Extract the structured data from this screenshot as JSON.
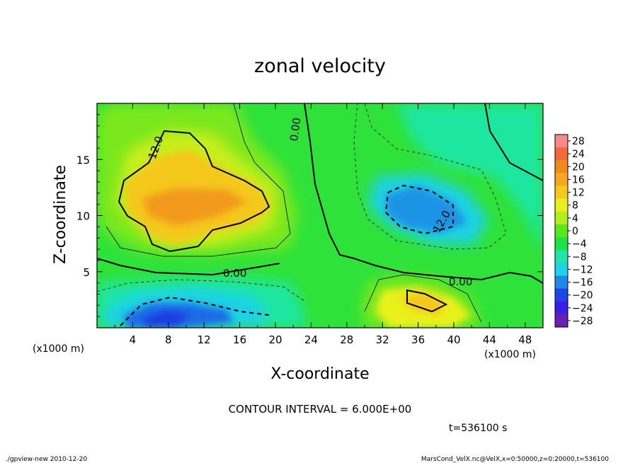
{
  "chart_data": {
    "type": "heatmap",
    "title": "zonal velocity",
    "xlabel": "X-coordinate",
    "ylabel": "Z-coordinate",
    "x_unit": "(x1000 m)",
    "y_unit": "(x1000 m)",
    "xlim": [
      0,
      50
    ],
    "ylim": [
      0,
      20
    ],
    "xticks": [
      4,
      8,
      12,
      16,
      20,
      24,
      28,
      32,
      36,
      40,
      44,
      48
    ],
    "yticks": [
      5,
      10,
      15
    ],
    "colorbar_levels": [
      28,
      24,
      20,
      16,
      12,
      8,
      4,
      0,
      -4,
      -8,
      -12,
      -16,
      -20,
      -24,
      -28
    ],
    "colorbar_colors": [
      "#f58a8a",
      "#f26a3a",
      "#f08a1e",
      "#f5a81e",
      "#f5c81e",
      "#eaf01e",
      "#b4ee1e",
      "#5ae61e",
      "#1ee14a",
      "#1ee6a6",
      "#1ed2e6",
      "#1e8ae6",
      "#1e46e6",
      "#3a1ee6",
      "#6a1eb4"
    ],
    "contour_interval_text": "CONTOUR INTERVAL = 6.000E+00",
    "contour_labels": [
      "12.0",
      "0.00",
      "0.00",
      "0.00",
      "12.0"
    ],
    "time_label": "t=536100 s"
  },
  "footer": {
    "left": "./gpview-new  2010-12-20",
    "right": "MarsCond_VelX.nc@VelX,x=0:50000,z=0:20000,t=536100"
  }
}
